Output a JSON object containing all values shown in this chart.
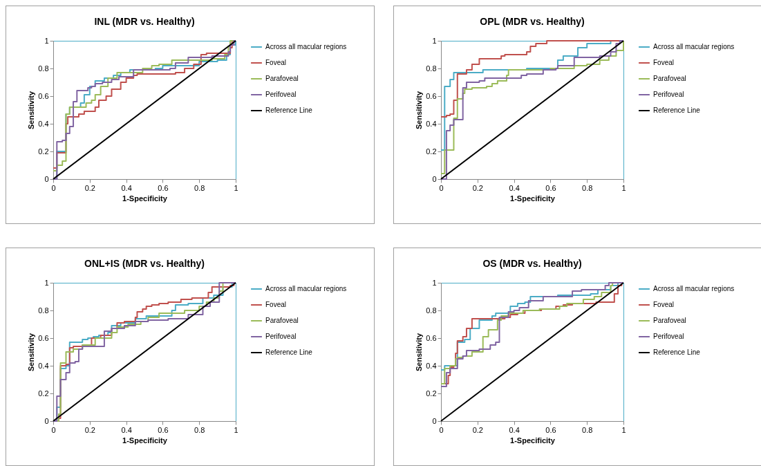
{
  "chart_data": [
    {
      "type": "step",
      "title": "INL (MDR vs. Healthy)",
      "xlabel": "1-Specificity",
      "ylabel": "Sensitivity",
      "xlim": [
        0,
        1
      ],
      "ylim": [
        0,
        1
      ],
      "xticks": [
        0,
        0.2,
        0.4,
        0.6,
        0.8,
        1
      ],
      "yticks": [
        0,
        0.2,
        0.4,
        0.6,
        0.8,
        1
      ],
      "legend": "right",
      "series": [
        {
          "name": "Across all macular regions",
          "color": "#4bacc6",
          "x": [
            0,
            0.02,
            0.07,
            0.09,
            0.15,
            0.17,
            0.2,
            0.23,
            0.28,
            0.33,
            0.37,
            0.42,
            0.56,
            0.6,
            0.8,
            0.9,
            0.95,
            0.97,
            1
          ],
          "values": [
            0,
            0.2,
            0.47,
            0.52,
            0.55,
            0.61,
            0.67,
            0.71,
            0.73,
            0.75,
            0.77,
            0.79,
            0.8,
            0.82,
            0.85,
            0.86,
            0.9,
            0.97,
            1
          ]
        },
        {
          "name": "Foveal",
          "color": "#c0504d",
          "x": [
            0,
            0.02,
            0.07,
            0.08,
            0.14,
            0.17,
            0.23,
            0.25,
            0.29,
            0.32,
            0.37,
            0.4,
            0.44,
            0.46,
            0.67,
            0.72,
            0.77,
            0.81,
            0.84,
            0.97,
            0.98,
            1
          ],
          "values": [
            0.08,
            0.19,
            0.4,
            0.45,
            0.47,
            0.49,
            0.52,
            0.57,
            0.6,
            0.65,
            0.7,
            0.73,
            0.75,
            0.76,
            0.77,
            0.8,
            0.83,
            0.9,
            0.91,
            0.95,
            1,
            1
          ]
        },
        {
          "name": "Parafoveal",
          "color": "#9bbb59",
          "x": [
            0,
            0.02,
            0.05,
            0.07,
            0.09,
            0.18,
            0.21,
            0.23,
            0.26,
            0.3,
            0.35,
            0.49,
            0.54,
            0.58,
            0.65,
            0.87,
            0.94,
            0.96,
            0.97,
            1
          ],
          "values": [
            0.06,
            0.1,
            0.13,
            0.47,
            0.52,
            0.55,
            0.57,
            0.61,
            0.67,
            0.73,
            0.77,
            0.8,
            0.82,
            0.83,
            0.86,
            0.87,
            0.9,
            0.96,
            1,
            1
          ]
        },
        {
          "name": "Perifoveal",
          "color": "#8064a2",
          "x": [
            0,
            0.02,
            0.05,
            0.07,
            0.09,
            0.11,
            0.13,
            0.19,
            0.21,
            0.23,
            0.27,
            0.32,
            0.36,
            0.44,
            0.64,
            0.67,
            0.74,
            0.87,
            0.96,
            0.97,
            0.99,
            1
          ],
          "values": [
            0,
            0.27,
            0.28,
            0.33,
            0.38,
            0.56,
            0.64,
            0.66,
            0.67,
            0.69,
            0.7,
            0.72,
            0.74,
            0.79,
            0.8,
            0.84,
            0.88,
            0.89,
            0.92,
            0.97,
            1,
            1
          ]
        },
        {
          "name": "Reference Line",
          "color": "#000000",
          "type": "line",
          "x": [
            0,
            1
          ],
          "values": [
            0,
            1
          ]
        }
      ]
    },
    {
      "type": "step",
      "title": "OPL (MDR vs. Healthy)",
      "xlabel": "1-Specificity",
      "ylabel": "Sensitivity",
      "xlim": [
        0,
        1
      ],
      "ylim": [
        0,
        1
      ],
      "xticks": [
        0,
        0.2,
        0.4,
        0.6,
        0.8,
        1
      ],
      "yticks": [
        0,
        0.2,
        0.4,
        0.6,
        0.8,
        1
      ],
      "legend": "right",
      "series": [
        {
          "name": "Across all macular regions",
          "color": "#4bacc6",
          "x": [
            0,
            0.02,
            0.05,
            0.07,
            0.23,
            0.47,
            0.6,
            0.64,
            0.67,
            0.75,
            0.8,
            0.93,
            1
          ],
          "values": [
            0.21,
            0.67,
            0.72,
            0.77,
            0.79,
            0.8,
            0.8,
            0.86,
            0.89,
            0.95,
            0.98,
            1,
            1
          ]
        },
        {
          "name": "Foveal",
          "color": "#c0504d",
          "x": [
            0,
            0.03,
            0.05,
            0.07,
            0.09,
            0.14,
            0.17,
            0.21,
            0.33,
            0.35,
            0.47,
            0.49,
            0.52,
            0.58,
            1
          ],
          "values": [
            0.45,
            0.46,
            0.47,
            0.57,
            0.76,
            0.79,
            0.83,
            0.87,
            0.89,
            0.9,
            0.92,
            0.96,
            0.98,
            1,
            1
          ]
        },
        {
          "name": "Parafoveal",
          "color": "#9bbb59",
          "x": [
            0,
            0.02,
            0.07,
            0.07,
            0.09,
            0.12,
            0.13,
            0.17,
            0.25,
            0.28,
            0.31,
            0.36,
            0.37,
            0.6,
            0.73,
            0.8,
            0.87,
            0.92,
            0.96,
            1
          ],
          "values": [
            0.04,
            0.21,
            0.27,
            0.44,
            0.58,
            0.62,
            0.65,
            0.66,
            0.67,
            0.69,
            0.71,
            0.75,
            0.79,
            0.8,
            0.82,
            0.83,
            0.86,
            0.89,
            0.93,
            1
          ]
        },
        {
          "name": "Perifoveal",
          "color": "#8064a2",
          "x": [
            0,
            0.03,
            0.05,
            0.07,
            0.12,
            0.14,
            0.21,
            0.24,
            0.44,
            0.47,
            0.56,
            0.63,
            0.64,
            0.73,
            0.87,
            0.93,
            0.96,
            0.98,
            1
          ],
          "values": [
            0,
            0.35,
            0.39,
            0.43,
            0.66,
            0.7,
            0.71,
            0.73,
            0.75,
            0.76,
            0.79,
            0.8,
            0.82,
            0.88,
            0.89,
            0.92,
            0.98,
            1,
            1
          ]
        },
        {
          "name": "Reference Line",
          "color": "#000000",
          "type": "line",
          "x": [
            0,
            1
          ],
          "values": [
            0,
            1
          ]
        }
      ]
    },
    {
      "type": "step",
      "title": "ONL+IS (MDR vs. Healthy)",
      "xlabel": "1-Specificity",
      "ylabel": "Sensitivity",
      "xlim": [
        0,
        1
      ],
      "ylim": [
        0,
        1
      ],
      "xticks": [
        0,
        0.2,
        0.4,
        0.6,
        0.8,
        1
      ],
      "yticks": [
        0,
        0.2,
        0.4,
        0.6,
        0.8,
        1
      ],
      "legend": "right",
      "series": [
        {
          "name": "Across all macular regions",
          "color": "#4bacc6",
          "x": [
            0,
            0.02,
            0.04,
            0.07,
            0.09,
            0.16,
            0.19,
            0.22,
            0.25,
            0.3,
            0.32,
            0.37,
            0.45,
            0.51,
            0.65,
            0.67,
            0.74,
            0.82,
            0.88,
            0.93,
            0.98,
            1
          ],
          "values": [
            0,
            0.1,
            0.38,
            0.4,
            0.57,
            0.59,
            0.6,
            0.61,
            0.62,
            0.64,
            0.69,
            0.71,
            0.74,
            0.76,
            0.8,
            0.84,
            0.85,
            0.89,
            0.91,
            0.97,
            1,
            1
          ]
        },
        {
          "name": "Foveal",
          "color": "#c0504d",
          "x": [
            0,
            0.03,
            0.04,
            0.07,
            0.09,
            0.11,
            0.16,
            0.21,
            0.26,
            0.32,
            0.35,
            0.39,
            0.45,
            0.46,
            0.49,
            0.51,
            0.54,
            0.58,
            0.63,
            0.7,
            0.76,
            0.85,
            0.87,
            0.97,
            0.99,
            1
          ],
          "values": [
            0,
            0.02,
            0.4,
            0.41,
            0.53,
            0.54,
            0.55,
            0.6,
            0.62,
            0.67,
            0.71,
            0.72,
            0.75,
            0.79,
            0.81,
            0.83,
            0.84,
            0.85,
            0.86,
            0.88,
            0.89,
            0.93,
            0.97,
            0.98,
            1,
            1
          ]
        },
        {
          "name": "Parafoveal",
          "color": "#9bbb59",
          "x": [
            0,
            0.03,
            0.04,
            0.07,
            0.11,
            0.16,
            0.23,
            0.32,
            0.35,
            0.41,
            0.48,
            0.52,
            0.58,
            0.72,
            0.8,
            0.84,
            0.88,
            0.91,
            0.93,
            1
          ],
          "values": [
            0,
            0.05,
            0.42,
            0.5,
            0.52,
            0.55,
            0.6,
            0.64,
            0.68,
            0.7,
            0.72,
            0.75,
            0.78,
            0.8,
            0.83,
            0.86,
            0.89,
            0.94,
            1,
            1
          ]
        },
        {
          "name": "Perifoveal",
          "color": "#8064a2",
          "x": [
            0,
            0.02,
            0.04,
            0.07,
            0.09,
            0.12,
            0.14,
            0.16,
            0.28,
            0.32,
            0.39,
            0.45,
            0.52,
            0.63,
            0.74,
            0.82,
            0.86,
            0.91,
            1
          ],
          "values": [
            0,
            0.18,
            0.3,
            0.35,
            0.42,
            0.43,
            0.52,
            0.54,
            0.65,
            0.67,
            0.69,
            0.72,
            0.73,
            0.74,
            0.77,
            0.83,
            0.86,
            1,
            1
          ]
        },
        {
          "name": "Reference Line",
          "color": "#000000",
          "type": "line",
          "x": [
            0,
            1
          ],
          "values": [
            0,
            1
          ]
        }
      ]
    },
    {
      "type": "step",
      "title": "OS (MDR vs. Healthy)",
      "xlabel": "1-Specificity",
      "ylabel": "Sensitivity",
      "xlim": [
        0,
        1
      ],
      "ylim": [
        0,
        1
      ],
      "xticks": [
        0,
        0.2,
        0.4,
        0.6,
        0.8,
        1
      ],
      "yticks": [
        0,
        0.2,
        0.4,
        0.6,
        0.8,
        1
      ],
      "legend": "right",
      "series": [
        {
          "name": "Across all macular regions",
          "color": "#4bacc6",
          "x": [
            0,
            0.02,
            0.09,
            0.13,
            0.16,
            0.21,
            0.28,
            0.3,
            0.37,
            0.38,
            0.42,
            0.46,
            0.49,
            0.64,
            0.82,
            0.86,
            0.93,
            0.97,
            1
          ],
          "values": [
            0.37,
            0.4,
            0.57,
            0.59,
            0.67,
            0.73,
            0.76,
            0.78,
            0.79,
            0.83,
            0.85,
            0.86,
            0.9,
            0.91,
            0.92,
            0.95,
            0.98,
            1,
            1
          ]
        },
        {
          "name": "Foveal",
          "color": "#c0504d",
          "x": [
            0,
            0.04,
            0.05,
            0.07,
            0.08,
            0.09,
            0.12,
            0.14,
            0.17,
            0.35,
            0.38,
            0.42,
            0.46,
            0.55,
            0.63,
            0.67,
            0.72,
            0.85,
            0.95,
            0.97,
            0.99,
            1
          ],
          "values": [
            0.27,
            0.33,
            0.39,
            0.4,
            0.49,
            0.58,
            0.61,
            0.67,
            0.74,
            0.75,
            0.77,
            0.78,
            0.8,
            0.81,
            0.83,
            0.84,
            0.85,
            0.86,
            0.92,
            0.98,
            1,
            1
          ]
        },
        {
          "name": "Parafoveal",
          "color": "#9bbb59",
          "x": [
            0,
            0.02,
            0.05,
            0.08,
            0.09,
            0.12,
            0.17,
            0.23,
            0.26,
            0.31,
            0.33,
            0.37,
            0.45,
            0.54,
            0.65,
            0.69,
            0.78,
            0.84,
            0.88,
            0.93,
            0.94,
            1
          ],
          "values": [
            0.27,
            0.38,
            0.4,
            0.45,
            0.46,
            0.47,
            0.5,
            0.61,
            0.66,
            0.73,
            0.76,
            0.78,
            0.8,
            0.81,
            0.83,
            0.85,
            0.88,
            0.9,
            0.93,
            0.98,
            1,
            1
          ]
        },
        {
          "name": "Perifoveal",
          "color": "#8064a2",
          "x": [
            0,
            0.03,
            0.05,
            0.09,
            0.12,
            0.14,
            0.21,
            0.27,
            0.3,
            0.32,
            0.37,
            0.4,
            0.43,
            0.48,
            0.56,
            0.72,
            0.77,
            0.9,
            0.92,
            1
          ],
          "values": [
            0.25,
            0.35,
            0.38,
            0.45,
            0.47,
            0.51,
            0.52,
            0.55,
            0.57,
            0.75,
            0.79,
            0.8,
            0.82,
            0.87,
            0.9,
            0.94,
            0.95,
            0.98,
            1,
            1
          ]
        },
        {
          "name": "Reference Line",
          "color": "#000000",
          "type": "line",
          "x": [
            0,
            1
          ],
          "values": [
            0,
            1
          ]
        }
      ]
    }
  ]
}
